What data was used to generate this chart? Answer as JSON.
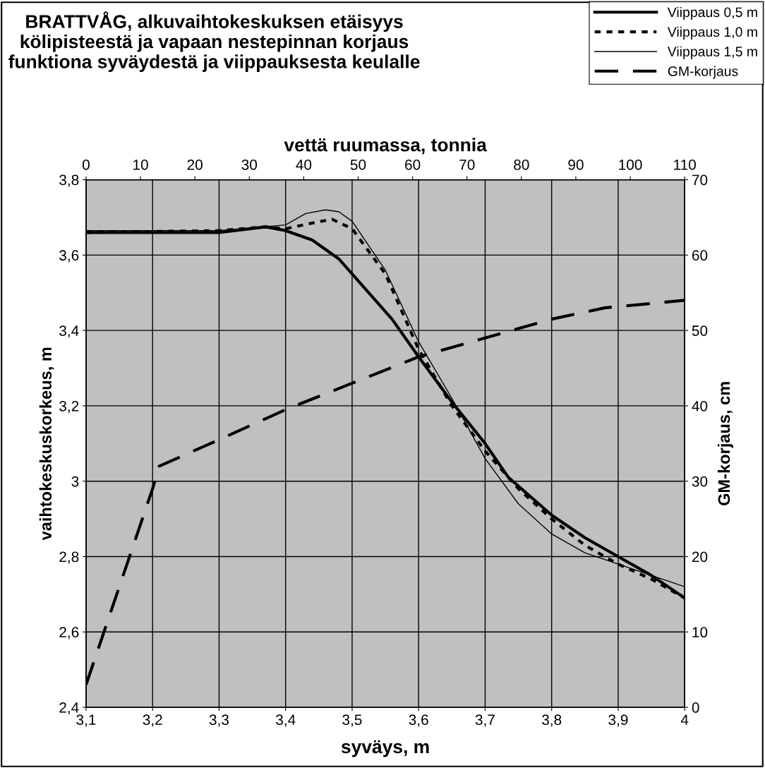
{
  "chart_data": {
    "type": "line",
    "title": "BRATTVÅG, alkuvaihtokeskuksen etäisyys\nkölipisteestä ja vapaan nestepinnan korjaus\nfunktiona syväydestä ja viippauksesta keulalle",
    "xlabel": "syväys, m",
    "ylabel": "vaihtokeskuskorkeus, m",
    "y2label": "GM-korjaus, cm",
    "x2label": "vettä ruumassa, tonnia",
    "xlim": [
      3.1,
      4.0
    ],
    "xticks": [
      {
        "value": 3.1,
        "label": "3,1"
      },
      {
        "value": 3.2,
        "label": "3,2"
      },
      {
        "value": 3.3,
        "label": "3,3"
      },
      {
        "value": 3.4,
        "label": "3,4"
      },
      {
        "value": 3.5,
        "label": "3,5"
      },
      {
        "value": 3.6,
        "label": "3,6"
      },
      {
        "value": 3.7,
        "label": "3,7"
      },
      {
        "value": 3.8,
        "label": "3,8"
      },
      {
        "value": 3.9,
        "label": "3,9"
      },
      4
    ],
    "ylim": [
      2.4,
      3.8
    ],
    "yticks": [
      {
        "value": 2.4,
        "label": "2,4"
      },
      {
        "value": 2.6,
        "label": "2,6"
      },
      {
        "value": 2.8,
        "label": "2,8"
      },
      3,
      {
        "value": 3.2,
        "label": "3,2"
      },
      {
        "value": 3.4,
        "label": "3,4"
      },
      {
        "value": 3.6,
        "label": "3,6"
      },
      {
        "value": 3.8,
        "label": "3,8"
      }
    ],
    "y2lim": [
      0,
      70
    ],
    "y2ticks": [
      0,
      10,
      20,
      30,
      40,
      50,
      60,
      70
    ],
    "x2lim": [
      0,
      110
    ],
    "x2ticks": [
      0,
      10,
      20,
      30,
      40,
      50,
      60,
      70,
      80,
      90,
      100,
      110
    ],
    "grid": true,
    "legend": "top right",
    "marker": "none",
    "series": [
      {
        "name": "Viippaus 0,5 m",
        "color": "#000000",
        "line_style": "solid",
        "x": [
          3.1,
          3.2,
          3.3,
          3.37,
          3.4,
          3.44,
          3.48,
          3.52,
          3.56,
          3.6,
          3.65,
          3.7,
          3.735,
          3.8,
          3.85,
          3.9,
          3.95,
          4.0
        ],
        "values": [
          3.66,
          3.66,
          3.66,
          3.675,
          3.665,
          3.64,
          3.59,
          3.51,
          3.43,
          3.33,
          3.21,
          3.1,
          3.01,
          2.91,
          2.85,
          2.8,
          2.75,
          2.69
        ]
      },
      {
        "name": "Viippaus 1,0 m",
        "color": "#000000",
        "line_style": "dotted",
        "x": [
          3.1,
          3.3,
          3.37,
          3.4,
          3.44,
          3.47,
          3.5,
          3.55,
          3.6,
          3.65,
          3.7,
          3.75,
          3.8,
          3.85,
          3.9,
          3.95,
          4.0
        ],
        "values": [
          3.66,
          3.665,
          3.675,
          3.67,
          3.685,
          3.695,
          3.67,
          3.55,
          3.35,
          3.2,
          3.08,
          2.98,
          2.9,
          2.83,
          2.78,
          2.74,
          2.69
        ]
      },
      {
        "name": "Viippaus 1,5 m",
        "color": "#000000",
        "line_style": "solid",
        "x": [
          3.1,
          3.3,
          3.4,
          3.43,
          3.46,
          3.48,
          3.5,
          3.55,
          3.6,
          3.65,
          3.7,
          3.75,
          3.8,
          3.85,
          3.9,
          3.95,
          4.0
        ],
        "values": [
          3.665,
          3.665,
          3.68,
          3.71,
          3.72,
          3.715,
          3.69,
          3.56,
          3.37,
          3.22,
          3.06,
          2.94,
          2.86,
          2.81,
          2.78,
          2.75,
          2.72
        ]
      },
      {
        "name": "GM-korjaus",
        "color": "#000000",
        "line_style": "dashed",
        "axis": "y2",
        "x": [
          3.1,
          3.2,
          3.21,
          3.3,
          3.4,
          3.5,
          3.6,
          3.7,
          3.8,
          3.88,
          4.0
        ],
        "values": [
          3,
          29,
          32,
          35.5,
          39.5,
          43,
          46.5,
          49,
          51.5,
          53,
          54
        ]
      }
    ]
  }
}
